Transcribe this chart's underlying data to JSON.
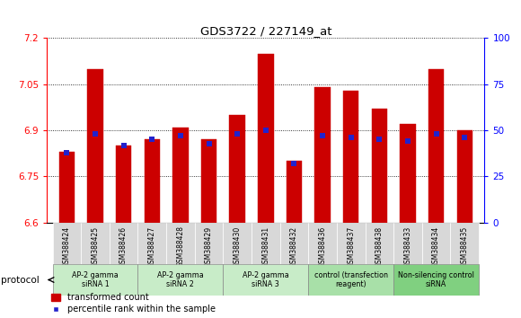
{
  "title": "GDS3722 / 227149_at",
  "samples": [
    "GSM388424",
    "GSM388425",
    "GSM388426",
    "GSM388427",
    "GSM388428",
    "GSM388429",
    "GSM388430",
    "GSM388431",
    "GSM388432",
    "GSM388436",
    "GSM388437",
    "GSM388438",
    "GSM388433",
    "GSM388434",
    "GSM388435"
  ],
  "red_values": [
    6.83,
    7.1,
    6.85,
    6.87,
    6.91,
    6.87,
    6.95,
    7.15,
    6.8,
    7.04,
    7.03,
    6.97,
    6.92,
    7.1,
    6.9
  ],
  "blue_values": [
    38,
    48,
    42,
    45,
    47,
    43,
    48,
    50,
    32,
    47,
    46,
    45,
    44,
    48,
    46
  ],
  "ymin": 6.6,
  "ymax": 7.2,
  "y2min": 0,
  "y2max": 100,
  "yticks_left": [
    6.6,
    6.75,
    6.9,
    7.05,
    7.2
  ],
  "yticks_right": [
    0,
    25,
    50,
    75,
    100
  ],
  "bar_color": "#cc0000",
  "blue_color": "#2222cc",
  "bg_color": "#ffffff",
  "sample_cell_color": "#d8d8d8",
  "protocol_groups": [
    {
      "label": "AP-2 gamma\nsiRNA 1",
      "indices": [
        0,
        1,
        2
      ],
      "color": "#c8ecc8"
    },
    {
      "label": "AP-2 gamma\nsiRNA 2",
      "indices": [
        3,
        4,
        5
      ],
      "color": "#c8ecc8"
    },
    {
      "label": "AP-2 gamma\nsiRNA 3",
      "indices": [
        6,
        7,
        8
      ],
      "color": "#c8ecc8"
    },
    {
      "label": "control (transfection\nreagent)",
      "indices": [
        9,
        10,
        11
      ],
      "color": "#a8e0a8"
    },
    {
      "label": "Non-silencing control\nsiRNA",
      "indices": [
        12,
        13,
        14
      ],
      "color": "#80d080"
    }
  ],
  "protocol_label": "protocol",
  "bar_width": 0.55,
  "blue_marker_size": 5
}
